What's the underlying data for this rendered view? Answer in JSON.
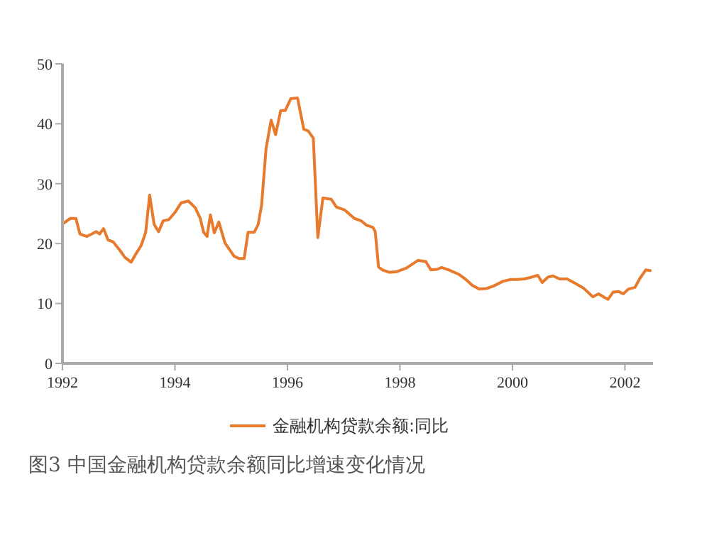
{
  "chart_data": {
    "type": "line",
    "title": "图3 中国金融机构贷款余额同比增速变化情况",
    "x": [
      1992.02,
      1992.14,
      1992.24,
      1992.31,
      1992.43,
      1992.52,
      1992.6,
      1992.66,
      1992.73,
      1992.81,
      1992.9,
      1993.02,
      1993.11,
      1993.22,
      1993.32,
      1993.4,
      1993.48,
      1993.55,
      1993.63,
      1993.71,
      1993.79,
      1993.89,
      1994.0,
      1994.11,
      1994.24,
      1994.36,
      1994.45,
      1994.51,
      1994.57,
      1994.63,
      1994.7,
      1994.78,
      1994.89,
      1995.05,
      1995.14,
      1995.23,
      1995.3,
      1995.41,
      1995.48,
      1995.54,
      1995.62,
      1995.71,
      1995.79,
      1995.88,
      1995.96,
      1996.06,
      1996.18,
      1996.29,
      1996.37,
      1996.46,
      1996.54,
      1996.63,
      1996.78,
      1996.87,
      1997.02,
      1997.19,
      1997.31,
      1997.4,
      1997.52,
      1997.56,
      1997.62,
      1997.69,
      1997.81,
      1997.94,
      1998.11,
      1998.24,
      1998.32,
      1998.46,
      1998.55,
      1998.66,
      1998.74,
      1998.87,
      1999.04,
      1999.16,
      1999.29,
      1999.41,
      1999.54,
      1999.66,
      1999.83,
      1999.96,
      2000.09,
      2000.21,
      2000.34,
      2000.45,
      2000.53,
      2000.63,
      2000.72,
      2000.84,
      2000.97,
      2001.09,
      2001.26,
      2001.43,
      2001.53,
      2001.64,
      2001.7,
      2001.79,
      2001.89,
      2001.97,
      2002.06,
      2002.18,
      2002.26,
      2002.37,
      2002.45
    ],
    "series": [
      {
        "name": "金融机构贷款余额:同比",
        "color": "#e87a2d",
        "values": [
          23.4,
          24.2,
          24.2,
          21.6,
          21.2,
          21.6,
          22.0,
          21.6,
          22.5,
          20.6,
          20.3,
          18.9,
          17.7,
          16.9,
          18.5,
          19.7,
          21.9,
          28.1,
          23.2,
          22.0,
          23.8,
          24.0,
          25.2,
          26.8,
          27.1,
          26.0,
          24.2,
          21.9,
          21.2,
          24.8,
          21.8,
          23.6,
          20.1,
          17.9,
          17.5,
          17.5,
          21.9,
          21.9,
          23.2,
          26.4,
          35.9,
          40.6,
          38.2,
          42.2,
          42.2,
          44.2,
          44.3,
          39.1,
          38.8,
          37.6,
          21.0,
          27.6,
          27.4,
          26.1,
          25.6,
          24.2,
          23.8,
          23.1,
          22.7,
          22.0,
          16.1,
          15.6,
          15.2,
          15.3,
          15.9,
          16.7,
          17.2,
          17.0,
          15.6,
          15.7,
          16.0,
          15.6,
          14.9,
          14.1,
          13.0,
          12.4,
          12.5,
          12.9,
          13.7,
          14.0,
          14.0,
          14.1,
          14.4,
          14.7,
          13.5,
          14.4,
          14.6,
          14.1,
          14.1,
          13.5,
          12.6,
          11.1,
          11.6,
          11.0,
          10.7,
          11.9,
          12.0,
          11.6,
          12.4,
          12.7,
          14.1,
          15.6,
          15.5
        ]
      }
    ],
    "xlim": [
      1992,
      2002.5
    ],
    "xticks": [
      1992,
      1994,
      1996,
      1998,
      2000,
      2002
    ],
    "ylim": [
      0,
      50
    ],
    "yticks": [
      0,
      10,
      20,
      30,
      40,
      50
    ],
    "grid": false,
    "legend": "bottom"
  }
}
